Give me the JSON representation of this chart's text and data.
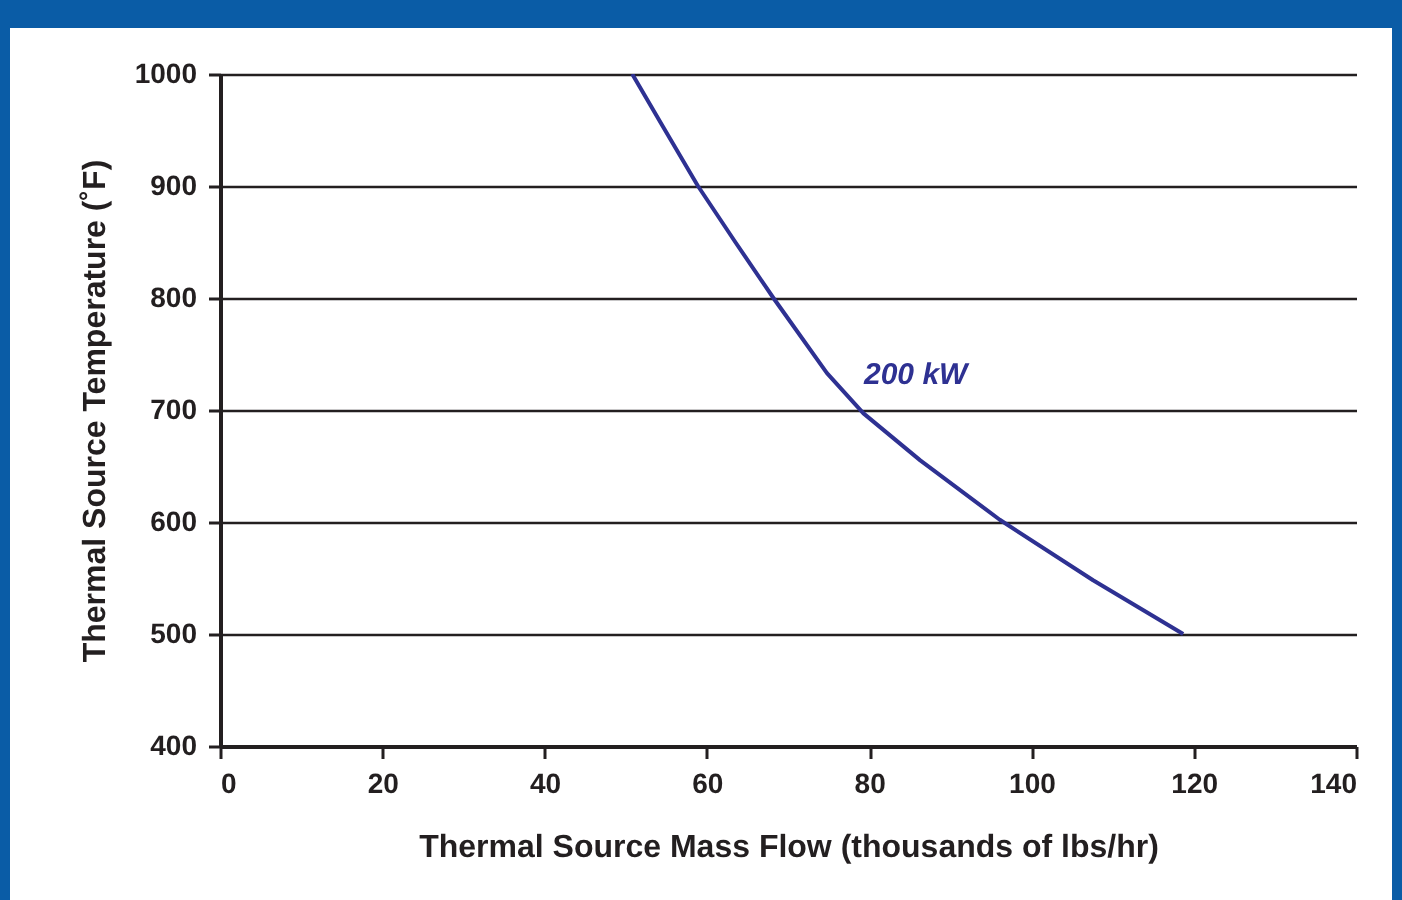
{
  "chart_data": {
    "type": "line",
    "xlabel": "Thermal Source Mass Flow (thousands of lbs/hr)",
    "ylabel": "Thermal Source Temperature (˚F)",
    "x": [
      50.8,
      54.6,
      58.9,
      63.5,
      68.2,
      74.8,
      79.3,
      86.3,
      96.1,
      107.6,
      118.7
    ],
    "series": [
      {
        "color": "#2e3192",
        "values": [
          1000,
          953,
          900,
          850,
          800,
          733,
          697,
          655,
          602,
          548,
          500
        ]
      }
    ],
    "annotations": [
      "200 kW"
    ],
    "xlim": [
      0,
      140
    ],
    "xticks": [
      0,
      20,
      40,
      60,
      80,
      100,
      120,
      140
    ],
    "ylim": [
      400,
      1000
    ],
    "yticks": [
      400,
      500,
      600,
      700,
      800,
      900,
      1000
    ],
    "grid": "y",
    "marker": "none",
    "line_style": "solid"
  }
}
